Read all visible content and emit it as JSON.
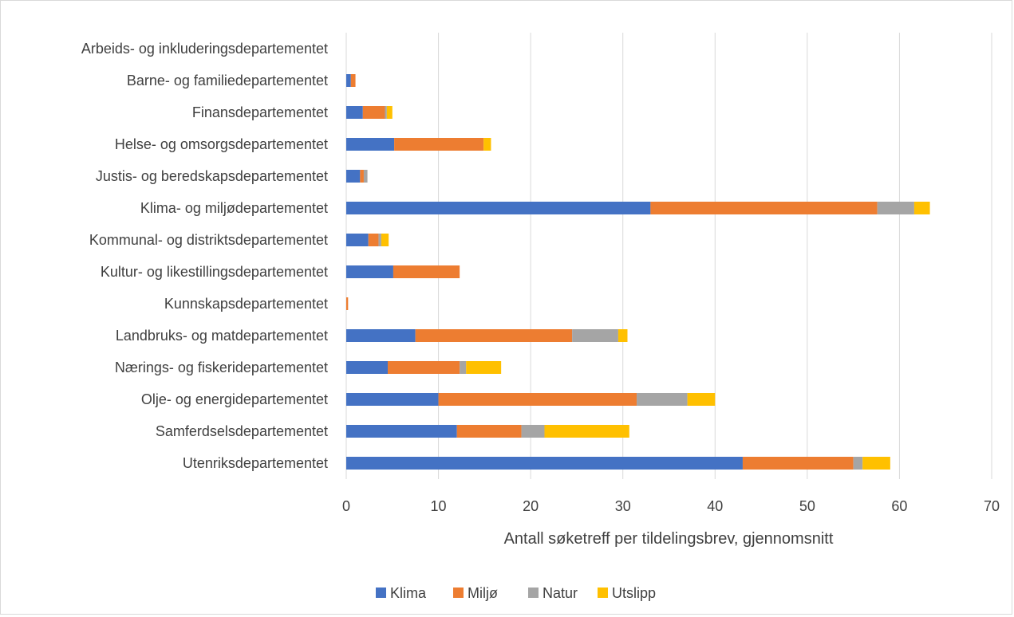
{
  "chart_data": {
    "type": "bar",
    "orientation": "horizontal",
    "stacked": true,
    "categories": [
      "Arbeids- og inkluderingsdepartementet",
      "Barne- og familiedepartementet",
      "Finansdepartementet",
      "Helse- og omsorgsdepartementet",
      "Justis- og beredskapsdepartementet",
      "Klima- og miljødepartementet",
      "Kommunal- og distriktsdepartementet",
      "Kultur- og likestillingsdepartementet",
      "Kunnskapsdepartementet",
      "Landbruks- og matdepartementet",
      "Nærings- og fiskeridepartementet",
      "Olje- og energidepartementet",
      "Samferdselsdepartementet",
      "Utenriksdepartementet"
    ],
    "series": [
      {
        "name": "Klima",
        "color": "#4472c4",
        "values": [
          0,
          0.5,
          1.8,
          5.2,
          1.5,
          33,
          2.4,
          5.1,
          0,
          7.5,
          4.5,
          10,
          12,
          43
        ]
      },
      {
        "name": "Miljø",
        "color": "#ed7d31",
        "values": [
          0,
          0.5,
          2.4,
          9.7,
          0.4,
          24.6,
          1.1,
          7.2,
          0.2,
          17,
          7.8,
          21.5,
          7,
          12
        ]
      },
      {
        "name": "Natur",
        "color": "#a5a5a5",
        "values": [
          0,
          0,
          0.2,
          0,
          0.4,
          4,
          0.3,
          0,
          0,
          5,
          0.7,
          5.5,
          2.5,
          1
        ]
      },
      {
        "name": "Utslipp",
        "color": "#ffc000",
        "values": [
          0,
          0,
          0.6,
          0.8,
          0,
          1.7,
          0.8,
          0,
          0,
          1,
          3.8,
          3,
          9.2,
          3
        ]
      }
    ],
    "xlabel": "Antall søketreff per tildelingsbrev, gjennomsnitt",
    "ylabel": "",
    "xlim": [
      0,
      70
    ],
    "xticks": [
      "0",
      "10",
      "20",
      "30",
      "40",
      "50",
      "60",
      "70"
    ],
    "grid": "vertical",
    "legend": "bottom"
  }
}
